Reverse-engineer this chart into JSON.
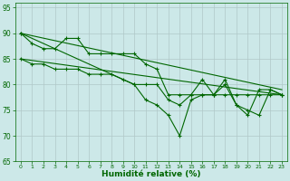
{
  "x": [
    0,
    1,
    2,
    3,
    4,
    5,
    6,
    7,
    8,
    9,
    10,
    11,
    12,
    13,
    14,
    15,
    16,
    17,
    18,
    19,
    20,
    21,
    22,
    23
  ],
  "line1": [
    90,
    88,
    87,
    87,
    89,
    89,
    86,
    86,
    86,
    86,
    86,
    84,
    83,
    78,
    78,
    78,
    81,
    78,
    81,
    76,
    74,
    79,
    79,
    78
  ],
  "line2": [
    85,
    84,
    84,
    83,
    83,
    83,
    82,
    82,
    82,
    81,
    80,
    80,
    80,
    77,
    76,
    78,
    78,
    78,
    78,
    78,
    78,
    78,
    78,
    78
  ],
  "line3_x": [
    0,
    10,
    11,
    12,
    13,
    14,
    15,
    16,
    17,
    18,
    19,
    20,
    21,
    22,
    23
  ],
  "line3_y": [
    90,
    80,
    77,
    76,
    74,
    70,
    77,
    78,
    78,
    80,
    76,
    75,
    74,
    79,
    78
  ],
  "trend1_x": [
    0,
    23
  ],
  "trend1_y": [
    90,
    79
  ],
  "trend2_x": [
    0,
    23
  ],
  "trend2_y": [
    85,
    78
  ],
  "xlim": [
    -0.5,
    23.5
  ],
  "ylim": [
    65,
    96
  ],
  "yticks": [
    65,
    70,
    75,
    80,
    85,
    90,
    95
  ],
  "xticks": [
    0,
    1,
    2,
    3,
    4,
    5,
    6,
    7,
    8,
    9,
    10,
    11,
    12,
    13,
    14,
    15,
    16,
    17,
    18,
    19,
    20,
    21,
    22,
    23
  ],
  "xlabel": "Humidité relative (%)",
  "bg_color": "#cce8e8",
  "grid_color": "#b0c8c8",
  "line_color": "#006600",
  "markersize": 3,
  "linewidth": 0.8
}
